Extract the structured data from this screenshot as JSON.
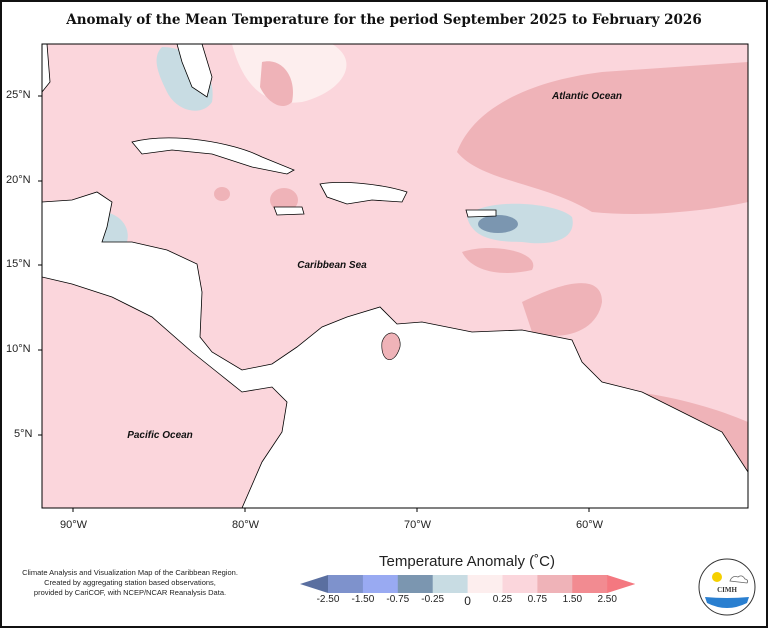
{
  "title": "Anomaly of the Mean Temperature for the period September 2025 to February 2026",
  "axes": {
    "longitude_labels": [
      "90°W",
      "80°W",
      "70°W",
      "60°W"
    ],
    "latitude_labels": [
      "25°N",
      "20°N",
      "15°N",
      "10°N",
      "5°N"
    ]
  },
  "map_labels": {
    "atlantic": "Atlantic Ocean",
    "caribbean": "Caribbean Sea",
    "pacific": "Pacific Ocean"
  },
  "credit": [
    "Climate Analysis and Visualization Map of the Caribbean Region.",
    "Created by aggregating station based observations,",
    "provided by CariCOF, with NCEP/NCAR Reanalysis Data."
  ],
  "legend": {
    "title": "Temperature Anomaly (˚C)",
    "ticks": [
      "-2.50",
      "-1.50",
      "-0.75",
      "-0.25",
      "0",
      "0.25",
      "0.75",
      "1.50",
      "2.50"
    ],
    "colors": [
      "#5a6fa0",
      "#7e92cc",
      "#99aaf2",
      "#7b96b0",
      "#c8dce3",
      "#fdeeee",
      "#fbd6dc",
      "#efb3b8",
      "#f28b91",
      "#f47880"
    ]
  },
  "logo": {
    "text": "CIMH"
  }
}
